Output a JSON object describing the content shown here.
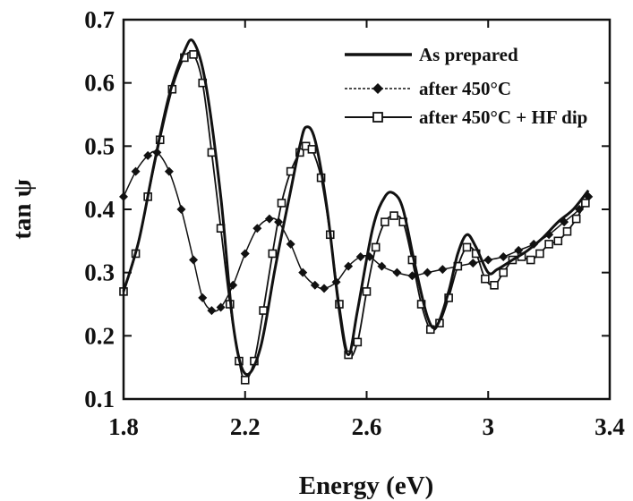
{
  "chart_data": {
    "type": "line",
    "xlabel": "Energy (eV)",
    "ylabel": "tan ψ",
    "xlim": [
      1.8,
      3.4
    ],
    "ylim": [
      0.1,
      0.7
    ],
    "xticks": [
      1.8,
      2.2,
      2.6,
      3.0,
      3.4
    ],
    "xtick_labels": [
      "1.8",
      "2.2",
      "2.6",
      "3",
      "3.4"
    ],
    "yticks": [
      0.1,
      0.2,
      0.3,
      0.4,
      0.5,
      0.6,
      0.7
    ],
    "ytick_labels": [
      "0.1",
      "0.2",
      "0.3",
      "0.4",
      "0.5",
      "0.6",
      "0.7"
    ],
    "grid": false,
    "legend_position": "top-right",
    "series": [
      {
        "name": "As prepared",
        "marker": "none",
        "color": "#111111",
        "x": [
          1.8,
          1.85,
          1.9,
          1.95,
          2.0,
          2.03,
          2.07,
          2.12,
          2.16,
          2.2,
          2.25,
          2.3,
          2.35,
          2.38,
          2.4,
          2.43,
          2.47,
          2.51,
          2.54,
          2.57,
          2.62,
          2.66,
          2.69,
          2.72,
          2.76,
          2.8,
          2.83,
          2.87,
          2.9,
          2.93,
          2.96,
          3.0,
          3.03,
          3.08,
          3.13,
          3.18,
          3.23,
          3.28,
          3.33
        ],
        "y": [
          0.27,
          0.35,
          0.47,
          0.58,
          0.65,
          0.665,
          0.6,
          0.42,
          0.22,
          0.14,
          0.18,
          0.31,
          0.43,
          0.5,
          0.53,
          0.51,
          0.4,
          0.24,
          0.17,
          0.24,
          0.37,
          0.42,
          0.425,
          0.4,
          0.31,
          0.23,
          0.215,
          0.27,
          0.33,
          0.36,
          0.34,
          0.3,
          0.305,
          0.32,
          0.335,
          0.355,
          0.38,
          0.4,
          0.43
        ]
      },
      {
        "name": "after 450°C",
        "marker": "diamond",
        "color": "#111111",
        "x": [
          1.8,
          1.84,
          1.88,
          1.91,
          1.95,
          1.99,
          2.03,
          2.06,
          2.09,
          2.12,
          2.16,
          2.2,
          2.24,
          2.28,
          2.31,
          2.35,
          2.39,
          2.43,
          2.46,
          2.5,
          2.54,
          2.58,
          2.61,
          2.65,
          2.7,
          2.75,
          2.8,
          2.85,
          2.9,
          2.95,
          3.0,
          3.05,
          3.1,
          3.15,
          3.2,
          3.25,
          3.3,
          3.33
        ],
        "y": [
          0.42,
          0.46,
          0.485,
          0.49,
          0.46,
          0.4,
          0.32,
          0.26,
          0.24,
          0.245,
          0.28,
          0.33,
          0.37,
          0.385,
          0.38,
          0.345,
          0.3,
          0.28,
          0.275,
          0.285,
          0.31,
          0.325,
          0.325,
          0.31,
          0.3,
          0.295,
          0.3,
          0.305,
          0.31,
          0.315,
          0.32,
          0.325,
          0.335,
          0.345,
          0.36,
          0.38,
          0.4,
          0.42
        ]
      },
      {
        "name": "after 450°C + HF dip",
        "marker": "square",
        "color": "#111111",
        "x": [
          1.8,
          1.84,
          1.88,
          1.92,
          1.96,
          2.0,
          2.03,
          2.06,
          2.09,
          2.12,
          2.15,
          2.18,
          2.2,
          2.23,
          2.26,
          2.29,
          2.32,
          2.35,
          2.38,
          2.4,
          2.42,
          2.45,
          2.48,
          2.51,
          2.54,
          2.57,
          2.6,
          2.63,
          2.66,
          2.69,
          2.72,
          2.75,
          2.78,
          2.81,
          2.84,
          2.87,
          2.9,
          2.93,
          2.96,
          2.99,
          3.02,
          3.05,
          3.08,
          3.11,
          3.14,
          3.17,
          3.2,
          3.23,
          3.26,
          3.29,
          3.32
        ],
        "y": [
          0.27,
          0.33,
          0.42,
          0.51,
          0.59,
          0.64,
          0.645,
          0.6,
          0.49,
          0.37,
          0.25,
          0.16,
          0.13,
          0.16,
          0.24,
          0.33,
          0.41,
          0.46,
          0.49,
          0.5,
          0.495,
          0.45,
          0.36,
          0.25,
          0.17,
          0.19,
          0.27,
          0.34,
          0.38,
          0.39,
          0.38,
          0.32,
          0.25,
          0.21,
          0.22,
          0.26,
          0.31,
          0.34,
          0.33,
          0.29,
          0.28,
          0.3,
          0.32,
          0.325,
          0.32,
          0.33,
          0.345,
          0.35,
          0.365,
          0.385,
          0.41
        ]
      }
    ]
  }
}
